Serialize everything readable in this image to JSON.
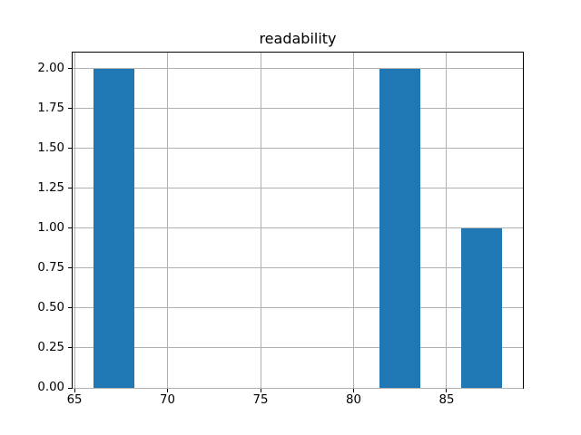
{
  "chart_data": {
    "type": "histogram",
    "title": "readability",
    "xlabel": "",
    "ylabel": "",
    "bar_color": "#1f77b4",
    "grid": true,
    "grid_color": "#b0b0b0",
    "axis_color": "#000000",
    "background": "#ffffff",
    "legend": null,
    "bin_edges": [
      66.0,
      68.2,
      70.4,
      72.6,
      74.8,
      77.0,
      79.2,
      81.4,
      83.6,
      85.8,
      88.0
    ],
    "counts": [
      2,
      0,
      0,
      0,
      0,
      0,
      0,
      2,
      0,
      1
    ],
    "xlim": [
      64.9,
      89.1
    ],
    "ylim": [
      0,
      2.1
    ],
    "x_ticks": {
      "values": [
        65,
        70,
        75,
        80,
        85
      ],
      "labels": [
        "65",
        "70",
        "75",
        "80",
        "85"
      ]
    },
    "y_ticks": {
      "values": [
        0,
        0.25,
        0.5,
        0.75,
        1.0,
        1.25,
        1.5,
        1.75,
        2.0
      ],
      "labels": [
        "0.00",
        "0.25",
        "0.50",
        "0.75",
        "1.00",
        "1.25",
        "1.50",
        "1.75",
        "2.00"
      ]
    }
  }
}
